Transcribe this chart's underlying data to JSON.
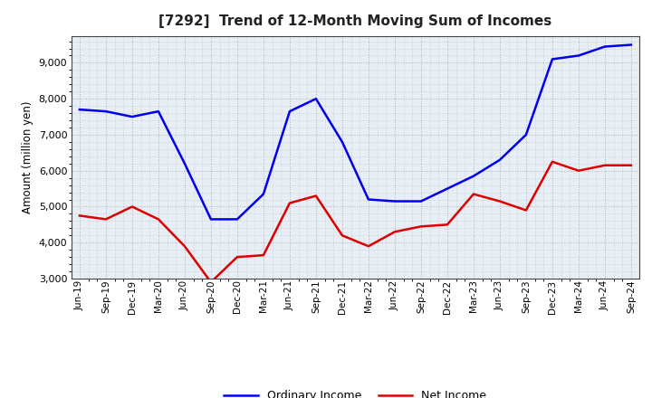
{
  "title": "[7292]  Trend of 12-Month Moving Sum of Incomes",
  "ylabel": "Amount (million yen)",
  "x_labels": [
    "Jun-19",
    "Sep-19",
    "Dec-19",
    "Mar-20",
    "Jun-20",
    "Sep-20",
    "Dec-20",
    "Mar-21",
    "Jun-21",
    "Sep-21",
    "Dec-21",
    "Mar-22",
    "Jun-22",
    "Sep-22",
    "Dec-22",
    "Mar-23",
    "Jun-23",
    "Sep-23",
    "Dec-23",
    "Mar-24",
    "Jun-24",
    "Sep-24"
  ],
  "ordinary_income": [
    7700,
    7650,
    7500,
    7650,
    6200,
    4650,
    4650,
    5350,
    7650,
    8000,
    6800,
    5200,
    5150,
    5150,
    5500,
    5850,
    6300,
    7000,
    9100,
    9200,
    9450,
    9500
  ],
  "net_income": [
    4750,
    4650,
    5000,
    4650,
    3900,
    2900,
    3600,
    3650,
    5100,
    5300,
    4200,
    3900,
    4300,
    4450,
    4500,
    5350,
    5150,
    4900,
    6250,
    6000,
    6150,
    6150
  ],
  "ordinary_income_color": "#0000ee",
  "net_income_color": "#dd0000",
  "ylim": [
    3000,
    9750
  ],
  "yticks": [
    3000,
    4000,
    5000,
    6000,
    7000,
    8000,
    9000
  ],
  "background_color": "#ffffff",
  "plot_bg_color": "#e8eef5",
  "grid_color": "#888888",
  "title_color": "#222222",
  "legend_labels": [
    "Ordinary Income",
    "Net Income"
  ]
}
